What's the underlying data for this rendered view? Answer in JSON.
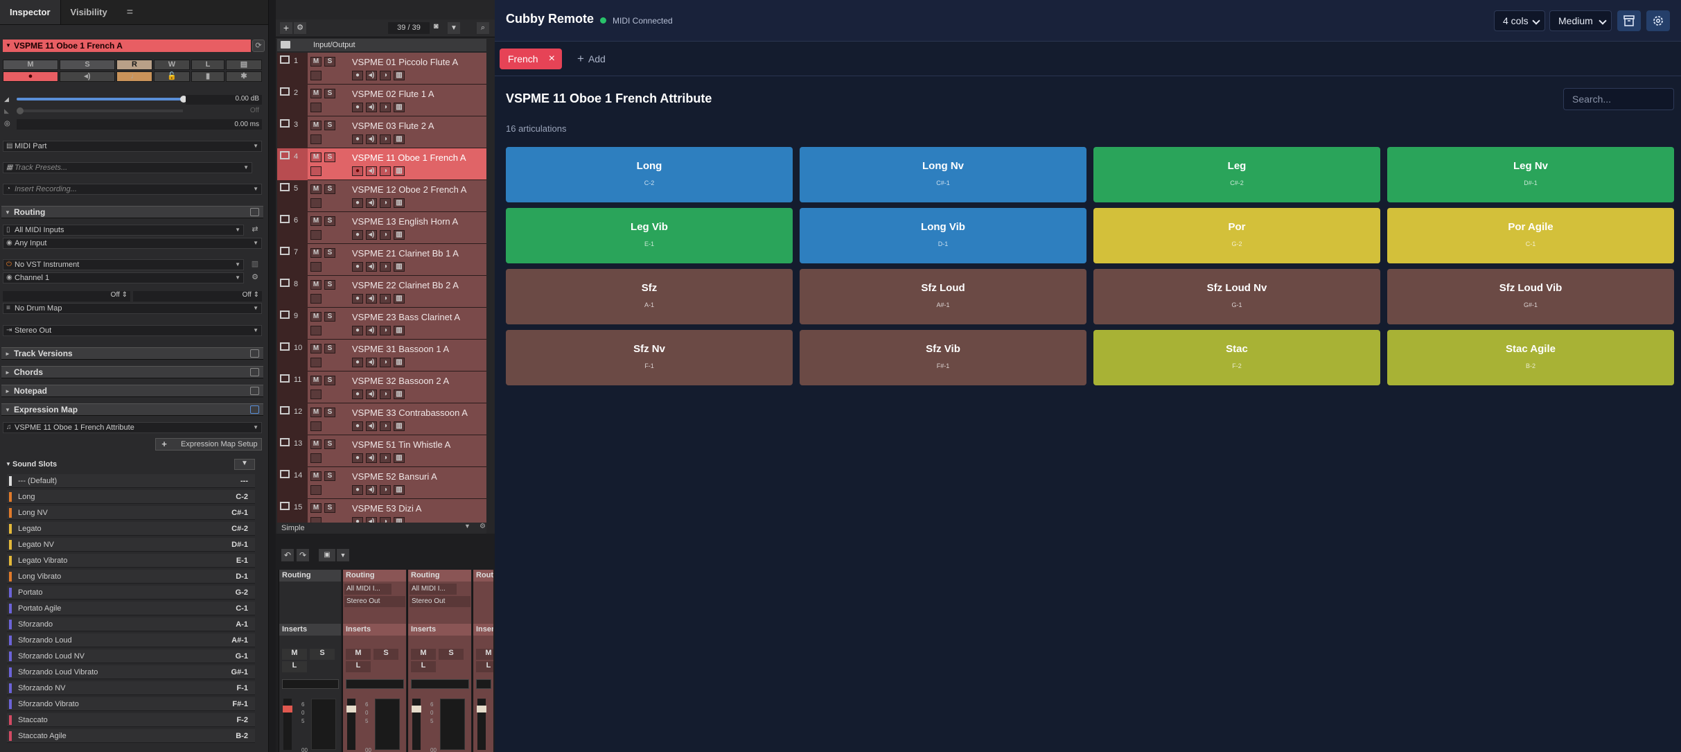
{
  "inspector": {
    "tabs": [
      "Inspector",
      "Visibility"
    ],
    "menu_icon": "=",
    "track_name": "VSPME 11 Oboe 1 French A",
    "buttons": [
      "M",
      "S",
      "R",
      "W",
      "L"
    ],
    "volume": "0.00 dB",
    "pan": "Off",
    "delay": "0.00 ms",
    "midi_part": "MIDI Part",
    "track_presets": "Track Presets...",
    "insert_recording": "Insert Recording...",
    "routing": {
      "title": "Routing",
      "midi_input": "All MIDI Inputs",
      "input": "Any Input",
      "instrument": "No VST Instrument",
      "channel": "Channel 1",
      "off_left": "Off",
      "off_right": "Off",
      "drum_map": "No Drum Map",
      "output": "Stereo Out"
    },
    "sections": [
      "Track Versions",
      "Chords",
      "Notepad",
      "Expression Map"
    ],
    "expression_map": "VSPME 11 Oboe 1 French Attribute",
    "expression_map_setup": "Expression Map Setup",
    "sound_slots_title": "Sound Slots",
    "sound_slots": [
      {
        "name": "--- (Default)",
        "key": "---",
        "color": "#dddddd"
      },
      {
        "name": "Long",
        "key": "C-2",
        "color": "#e07a2a"
      },
      {
        "name": "Long NV",
        "key": "C#-1",
        "color": "#e07a2a"
      },
      {
        "name": "Legato",
        "key": "C#-2",
        "color": "#e3b83a"
      },
      {
        "name": "Legato NV",
        "key": "D#-1",
        "color": "#e3b83a"
      },
      {
        "name": "Legato Vibrato",
        "key": "E-1",
        "color": "#e3b83a"
      },
      {
        "name": "Long Vibrato",
        "key": "D-1",
        "color": "#e07a2a"
      },
      {
        "name": "Portato",
        "key": "G-2",
        "color": "#6c63d8"
      },
      {
        "name": "Portato Agile",
        "key": "C-1",
        "color": "#6c63d8"
      },
      {
        "name": "Sforzando",
        "key": "A-1",
        "color": "#6c63d8"
      },
      {
        "name": "Sforzando Loud",
        "key": "A#-1",
        "color": "#6c63d8"
      },
      {
        "name": "Sforzando Loud NV",
        "key": "G-1",
        "color": "#6c63d8"
      },
      {
        "name": "Sforzando Loud Vibrato",
        "key": "G#-1",
        "color": "#6c63d8"
      },
      {
        "name": "Sforzando NV",
        "key": "F-1",
        "color": "#6c63d8"
      },
      {
        "name": "Sforzando Vibrato",
        "key": "F#-1",
        "color": "#6c63d8"
      },
      {
        "name": "Staccato",
        "key": "F-2",
        "color": "#d24a63"
      },
      {
        "name": "Staccato Agile",
        "key": "B-2",
        "color": "#d24a63"
      }
    ]
  },
  "track_list": {
    "counter": "39 / 39",
    "folder_name": "Input/Output",
    "tracks": [
      {
        "num": "1",
        "name": "VSPME 01 Piccolo Flute A"
      },
      {
        "num": "2",
        "name": "VSPME 02 Flute 1 A"
      },
      {
        "num": "3",
        "name": "VSPME 03 Flute 2 A"
      },
      {
        "num": "4",
        "name": "VSPME 11 Oboe 1 French A",
        "selected": true
      },
      {
        "num": "5",
        "name": "VSPME 12 Oboe 2 French A"
      },
      {
        "num": "6",
        "name": "VSPME 13 English Horn A"
      },
      {
        "num": "7",
        "name": "VSPME 21 Clarinet Bb 1 A"
      },
      {
        "num": "8",
        "name": "VSPME 22 Clarinet Bb 2 A"
      },
      {
        "num": "9",
        "name": "VSPME 23 Bass Clarinet A"
      },
      {
        "num": "10",
        "name": "VSPME 31 Bassoon 1 A"
      },
      {
        "num": "11",
        "name": "VSPME 32 Bassoon 2 A"
      },
      {
        "num": "12",
        "name": "VSPME 33 Contrabassoon A"
      },
      {
        "num": "13",
        "name": "VSPME 51 Tin Whistle A"
      },
      {
        "num": "14",
        "name": "VSPME 52 Bansuri A"
      },
      {
        "num": "15",
        "name": "VSPME 53 Dizi A"
      }
    ],
    "lower_zone_label": "Simple"
  },
  "mixer": {
    "routing_label": "Routing",
    "inserts_label": "Inserts",
    "midi_in": "All MIDI I...",
    "stereo_out": "Stereo Out",
    "m": "M",
    "s": "S",
    "l": "L",
    "meter_ticks": [
      "6",
      "0",
      "5",
      "00"
    ]
  },
  "remote": {
    "title": "Cubby Remote",
    "status": "MIDI Connected",
    "status_color": "#29c26a",
    "cols": "4 cols",
    "size": "Medium",
    "chip": "French",
    "add": "Add",
    "map_title": "VSPME 11 Oboe 1 French Attribute",
    "count": "16 articulations",
    "search_placeholder": "Search...",
    "articulations": [
      {
        "name": "Long",
        "note": "C-2",
        "color": "#2e7fbf"
      },
      {
        "name": "Long Nv",
        "note": "C#-1",
        "color": "#2e7fbf"
      },
      {
        "name": "Leg",
        "note": "C#-2",
        "color": "#2aa45a"
      },
      {
        "name": "Leg Nv",
        "note": "D#-1",
        "color": "#2aa45a"
      },
      {
        "name": "Leg Vib",
        "note": "E-1",
        "color": "#2aa45a"
      },
      {
        "name": "Long Vib",
        "note": "D-1",
        "color": "#2e7fbf"
      },
      {
        "name": "Por",
        "note": "G-2",
        "color": "#d3c03a"
      },
      {
        "name": "Por Agile",
        "note": "C-1",
        "color": "#d3c03a"
      },
      {
        "name": "Sfz",
        "note": "A-1",
        "color": "#6b4a45"
      },
      {
        "name": "Sfz Loud",
        "note": "A#-1",
        "color": "#6b4a45"
      },
      {
        "name": "Sfz Loud Nv",
        "note": "G-1",
        "color": "#6b4a45"
      },
      {
        "name": "Sfz Loud Vib",
        "note": "G#-1",
        "color": "#6b4a45"
      },
      {
        "name": "Sfz Nv",
        "note": "F-1",
        "color": "#6b4a45"
      },
      {
        "name": "Sfz Vib",
        "note": "F#-1",
        "color": "#6b4a45"
      },
      {
        "name": "Stac",
        "note": "F-2",
        "color": "#a8b235"
      },
      {
        "name": "Stac Agile",
        "note": "B-2",
        "color": "#a8b235"
      }
    ]
  }
}
